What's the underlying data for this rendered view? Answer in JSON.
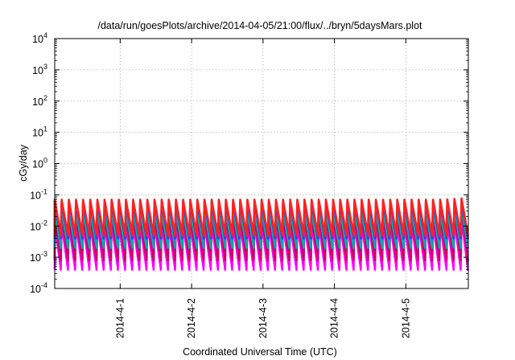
{
  "chart_data": {
    "type": "area",
    "title": "/data/run/goesPlots/archive/2014-04-05/21:00/flux/../bryn/5daysMars.plot",
    "xlabel": "Coordinated Universal Time (UTC)",
    "ylabel": "cGy/day",
    "yscale": "log",
    "ylim": [
      0.0001,
      10000
    ],
    "xlim": [
      "2014-03-31T02:00",
      "2014-04-05T21:00"
    ],
    "y_ticks": [
      {
        "value": 0.0001,
        "base": "10",
        "exp": "-4"
      },
      {
        "value": 0.001,
        "base": "10",
        "exp": "-3"
      },
      {
        "value": 0.01,
        "base": "10",
        "exp": "-2"
      },
      {
        "value": 0.1,
        "base": "10",
        "exp": "-1"
      },
      {
        "value": 1,
        "base": "10",
        "exp": "0"
      },
      {
        "value": 10,
        "base": "10",
        "exp": "1"
      },
      {
        "value": 100,
        "base": "10",
        "exp": "2"
      },
      {
        "value": 1000,
        "base": "10",
        "exp": "3"
      },
      {
        "value": 10000,
        "base": "10",
        "exp": "4"
      }
    ],
    "x_ticks": [
      {
        "value": "2014-04-01T00:00",
        "label": "2014-4-1"
      },
      {
        "value": "2014-04-02T00:00",
        "label": "2014-4-2"
      },
      {
        "value": "2014-04-03T00:00",
        "label": "2014-4-3"
      },
      {
        "value": "2014-04-04T00:00",
        "label": "2014-4-4"
      },
      {
        "value": "2014-04-05T00:00",
        "label": "2014-4-5"
      }
    ],
    "grid": true,
    "legend": "none",
    "sawtooth_period_hours": 2.4,
    "series": [
      {
        "color": "#ff00ff",
        "low": 0.0004,
        "high": 0.012,
        "final_high": 0.02
      },
      {
        "color": "#cc0066",
        "low": 0.0008,
        "high": 0.02,
        "final_high": 0.05
      },
      {
        "color": "#00aaaa",
        "low": 0.002,
        "high": 0.03,
        "final_high": 0.045
      },
      {
        "color": "#2244ff",
        "low": 0.004,
        "high": 0.06,
        "final_high": 0.07
      },
      {
        "color": "#ff2222",
        "low": 0.005,
        "high": 0.07,
        "final_high": 0.08
      }
    ]
  }
}
